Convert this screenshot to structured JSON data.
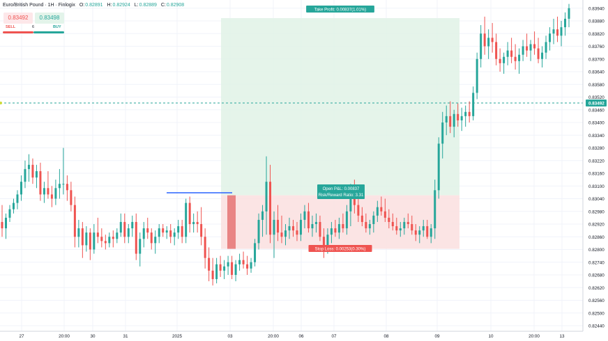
{
  "header": {
    "symbol": "Euro/British Pound · 1H · Finlogix",
    "o_label": "O:",
    "o": "0.82891",
    "h_label": "H:",
    "h": "0.82924",
    "l_label": "L:",
    "l": "0.82889",
    "c_label": "C:",
    "c": "0.82908"
  },
  "trade": {
    "sell_price": "0.83492",
    "buy_price": "0.83498",
    "sell_label": "SELL",
    "buy_label": "BUY",
    "spread": "6"
  },
  "colors": {
    "up": "#26a69a",
    "down": "#ef5350",
    "profit_zone": "#e0f2e6",
    "loss_zone": "#fbe1e1",
    "entry_line": "#2962ff"
  },
  "chart_data": {
    "type": "candlestick",
    "title": "Euro/British Pound · 1H · Finlogix",
    "xlabel": "",
    "ylabel": "",
    "ylim": [
      0.8242,
      0.8397
    ],
    "y_ticks": [
      "0.83940",
      "0.83880",
      "0.83820",
      "0.83760",
      "0.83700",
      "0.83640",
      "0.83580",
      "0.83520",
      "0.83460",
      "0.83400",
      "0.83340",
      "0.83280",
      "0.83220",
      "0.83160",
      "0.83100",
      "0.83040",
      "0.82980",
      "0.82920",
      "0.82860",
      "0.82800",
      "0.82740",
      "0.82680",
      "0.82620",
      "0.82560",
      "0.82500",
      "0.82440"
    ],
    "x_ticks": [
      "27",
      "20:00",
      "30",
      "31",
      "2025",
      "03",
      "20:00",
      "06",
      "07",
      "08",
      "09",
      "10",
      "20:00",
      "13"
    ],
    "current_price": "0.83492",
    "position": {
      "side": "long",
      "entry": 0.83056,
      "take_profit": 0.83893,
      "stop_loss": 0.82803,
      "take_profit_label": "Take Profit: 0.00837(1.01%)",
      "stop_loss_label": "Stop Loss: 0.00253(0.30%)",
      "pnl_label": "Open P&L: 0.00837",
      "rr_label": "Risk/Reward Ratio: 3.31"
    },
    "series": [
      {
        "values": [
          [
            0.8293,
            0.8301,
            0.8286,
            0.829
          ],
          [
            0.829,
            0.8297,
            0.8285,
            0.8295
          ],
          [
            0.8295,
            0.8301,
            0.8293,
            0.8299
          ],
          [
            0.8299,
            0.8304,
            0.8297,
            0.8302
          ],
          [
            0.8302,
            0.8308,
            0.8299,
            0.8306
          ],
          [
            0.8306,
            0.8315,
            0.8303,
            0.8312
          ],
          [
            0.8312,
            0.8322,
            0.8309,
            0.8318
          ],
          [
            0.8318,
            0.8325,
            0.8312,
            0.832
          ],
          [
            0.832,
            0.8323,
            0.8311,
            0.8314
          ],
          [
            0.8314,
            0.832,
            0.8309,
            0.8317
          ],
          [
            0.8317,
            0.8321,
            0.8303,
            0.8306
          ],
          [
            0.8306,
            0.8312,
            0.8302,
            0.8309
          ],
          [
            0.8309,
            0.8317,
            0.8304,
            0.8306
          ],
          [
            0.8306,
            0.831,
            0.83,
            0.8304
          ],
          [
            0.8304,
            0.8313,
            0.8301,
            0.8309
          ],
          [
            0.8309,
            0.8318,
            0.8304,
            0.8311
          ],
          [
            0.8311,
            0.8328,
            0.8306,
            0.8311
          ],
          [
            0.8311,
            0.8315,
            0.8303,
            0.8308
          ],
          [
            0.8308,
            0.8312,
            0.8298,
            0.8301
          ],
          [
            0.8301,
            0.8305,
            0.8281,
            0.8286
          ],
          [
            0.8286,
            0.8294,
            0.8281,
            0.829
          ],
          [
            0.829,
            0.8293,
            0.8276,
            0.8282
          ],
          [
            0.8282,
            0.8291,
            0.8279,
            0.8288
          ],
          [
            0.8288,
            0.829,
            0.8275,
            0.828
          ],
          [
            0.828,
            0.8292,
            0.8278,
            0.8288
          ],
          [
            0.8288,
            0.8295,
            0.8283,
            0.8286
          ],
          [
            0.8286,
            0.829,
            0.8281,
            0.8284
          ],
          [
            0.8284,
            0.8287,
            0.828,
            0.8283
          ],
          [
            0.8283,
            0.8288,
            0.8281,
            0.8286
          ],
          [
            0.8286,
            0.8289,
            0.8281,
            0.8285
          ],
          [
            0.8285,
            0.829,
            0.8283,
            0.8288
          ],
          [
            0.8288,
            0.8297,
            0.8286,
            0.8293
          ],
          [
            0.8293,
            0.8297,
            0.8283,
            0.8286
          ],
          [
            0.8286,
            0.8292,
            0.8283,
            0.829
          ],
          [
            0.829,
            0.8296,
            0.8286,
            0.8293
          ],
          [
            0.8293,
            0.8297,
            0.8275,
            0.8278
          ],
          [
            0.8278,
            0.8288,
            0.8272,
            0.8285
          ],
          [
            0.8285,
            0.8293,
            0.8281,
            0.829
          ],
          [
            0.829,
            0.8295,
            0.8285,
            0.8288
          ],
          [
            0.8288,
            0.829,
            0.828,
            0.8283
          ],
          [
            0.8283,
            0.8289,
            0.8278,
            0.8286
          ],
          [
            0.8286,
            0.8292,
            0.8283,
            0.829
          ],
          [
            0.829,
            0.8292,
            0.8286,
            0.8288
          ],
          [
            0.8288,
            0.8291,
            0.8285,
            0.8289
          ],
          [
            0.8289,
            0.8292,
            0.8283,
            0.8286
          ],
          [
            0.8286,
            0.829,
            0.8282,
            0.8288
          ],
          [
            0.8288,
            0.8294,
            0.8285,
            0.8291
          ],
          [
            0.8291,
            0.8294,
            0.8283,
            0.8286
          ],
          [
            0.8286,
            0.8304,
            0.8283,
            0.8302
          ],
          [
            0.8302,
            0.8305,
            0.8288,
            0.8292
          ],
          [
            0.8292,
            0.8297,
            0.8288,
            0.8293
          ],
          [
            0.8293,
            0.8298,
            0.8288,
            0.8292
          ],
          [
            0.8292,
            0.83,
            0.8282,
            0.8286
          ],
          [
            0.8286,
            0.829,
            0.8271,
            0.8276
          ],
          [
            0.8276,
            0.8281,
            0.8265,
            0.827
          ],
          [
            0.827,
            0.8276,
            0.8263,
            0.8266
          ],
          [
            0.8266,
            0.8276,
            0.8264,
            0.8273
          ],
          [
            0.8273,
            0.8277,
            0.8267,
            0.827
          ],
          [
            0.827,
            0.8275,
            0.8266,
            0.8272
          ],
          [
            0.8272,
            0.8277,
            0.8268,
            0.8274
          ],
          [
            0.8274,
            0.8277,
            0.8266,
            0.8268
          ],
          [
            0.8268,
            0.8275,
            0.8265,
            0.8273
          ],
          [
            0.8273,
            0.8278,
            0.827,
            0.8275
          ],
          [
            0.8275,
            0.8279,
            0.8271,
            0.8273
          ],
          [
            0.8273,
            0.8277,
            0.8268,
            0.8271
          ],
          [
            0.8271,
            0.8276,
            0.8269,
            0.8274
          ],
          [
            0.8274,
            0.8285,
            0.8272,
            0.8283
          ],
          [
            0.8283,
            0.8297,
            0.828,
            0.8294
          ],
          [
            0.8294,
            0.8301,
            0.8286,
            0.8298
          ],
          [
            0.8298,
            0.8324,
            0.8287,
            0.8312
          ],
          [
            0.8312,
            0.832,
            0.8283,
            0.8287
          ],
          [
            0.8287,
            0.8298,
            0.8276,
            0.8294
          ],
          [
            0.8294,
            0.8301,
            0.8284,
            0.8288
          ],
          [
            0.8288,
            0.8296,
            0.8283,
            0.8286
          ],
          [
            0.8286,
            0.8292,
            0.8282,
            0.8289
          ],
          [
            0.8289,
            0.8295,
            0.8285,
            0.8291
          ],
          [
            0.8291,
            0.8294,
            0.8286,
            0.8289
          ],
          [
            0.8289,
            0.8293,
            0.8284,
            0.8287
          ],
          [
            0.8287,
            0.8297,
            0.8284,
            0.8294
          ],
          [
            0.8294,
            0.8301,
            0.829,
            0.8298
          ],
          [
            0.8298,
            0.8302,
            0.8288,
            0.829
          ],
          [
            0.829,
            0.8296,
            0.8286,
            0.8292
          ],
          [
            0.8292,
            0.8297,
            0.8288,
            0.8293
          ],
          [
            0.8293,
            0.8296,
            0.8284,
            0.8286
          ],
          [
            0.8286,
            0.829,
            0.8276,
            0.8281
          ],
          [
            0.8281,
            0.829,
            0.8278,
            0.8287
          ],
          [
            0.8287,
            0.8293,
            0.8283,
            0.829
          ],
          [
            0.829,
            0.8294,
            0.8286,
            0.8288
          ],
          [
            0.8288,
            0.8295,
            0.8285,
            0.8292
          ],
          [
            0.8292,
            0.8297,
            0.8288,
            0.829
          ],
          [
            0.829,
            0.8301,
            0.8287,
            0.8298
          ],
          [
            0.8298,
            0.8311,
            0.8291,
            0.8305
          ],
          [
            0.8305,
            0.8313,
            0.8297,
            0.8301
          ],
          [
            0.8301,
            0.8306,
            0.8293,
            0.8296
          ],
          [
            0.8296,
            0.83,
            0.8291,
            0.8293
          ],
          [
            0.8293,
            0.8297,
            0.8288,
            0.829
          ],
          [
            0.829,
            0.8294,
            0.8287,
            0.8292
          ],
          [
            0.8292,
            0.8298,
            0.8288,
            0.8296
          ],
          [
            0.8296,
            0.8303,
            0.8293,
            0.83
          ],
          [
            0.83,
            0.8305,
            0.8296,
            0.8298
          ],
          [
            0.8298,
            0.8304,
            0.8293,
            0.8295
          ],
          [
            0.8295,
            0.8299,
            0.829,
            0.8293
          ],
          [
            0.8293,
            0.8297,
            0.8289,
            0.8291
          ],
          [
            0.8291,
            0.8295,
            0.8287,
            0.8289
          ],
          [
            0.8289,
            0.8293,
            0.8286,
            0.829
          ],
          [
            0.829,
            0.8295,
            0.8287,
            0.8293
          ],
          [
            0.8293,
            0.8297,
            0.829,
            0.8292
          ],
          [
            0.8292,
            0.8296,
            0.8287,
            0.8289
          ],
          [
            0.8289,
            0.8292,
            0.8284,
            0.8287
          ],
          [
            0.8287,
            0.8291,
            0.8283,
            0.8289
          ],
          [
            0.8289,
            0.8294,
            0.8286,
            0.8291
          ],
          [
            0.8291,
            0.8294,
            0.8285,
            0.8286
          ],
          [
            0.8286,
            0.8292,
            0.8283,
            0.829
          ],
          [
            0.829,
            0.8313,
            0.8285,
            0.8308
          ],
          [
            0.8308,
            0.8333,
            0.8304,
            0.833
          ],
          [
            0.833,
            0.8345,
            0.8323,
            0.834
          ],
          [
            0.834,
            0.8348,
            0.8334,
            0.8343
          ],
          [
            0.8343,
            0.835,
            0.8335,
            0.8338
          ],
          [
            0.8338,
            0.8346,
            0.8333,
            0.8344
          ],
          [
            0.8344,
            0.8349,
            0.8338,
            0.8341
          ],
          [
            0.8341,
            0.8347,
            0.8336,
            0.8343
          ],
          [
            0.8343,
            0.8348,
            0.8338,
            0.8345
          ],
          [
            0.8345,
            0.835,
            0.834,
            0.8343
          ],
          [
            0.8343,
            0.8357,
            0.8341,
            0.8354
          ],
          [
            0.8354,
            0.8373,
            0.8351,
            0.837
          ],
          [
            0.837,
            0.8386,
            0.8366,
            0.8382
          ],
          [
            0.8382,
            0.839,
            0.8372,
            0.8376
          ],
          [
            0.8376,
            0.8384,
            0.837,
            0.838
          ],
          [
            0.838,
            0.8387,
            0.8373,
            0.8378
          ],
          [
            0.8378,
            0.8382,
            0.8367,
            0.837
          ],
          [
            0.837,
            0.8375,
            0.8364,
            0.8368
          ],
          [
            0.8368,
            0.8373,
            0.8363,
            0.8371
          ],
          [
            0.8371,
            0.8378,
            0.8367,
            0.8374
          ],
          [
            0.8374,
            0.838,
            0.8368,
            0.8371
          ],
          [
            0.8371,
            0.8377,
            0.8365,
            0.8369
          ],
          [
            0.8369,
            0.8375,
            0.8363,
            0.8372
          ],
          [
            0.8372,
            0.8379,
            0.8369,
            0.8376
          ],
          [
            0.8376,
            0.8382,
            0.8371,
            0.8374
          ],
          [
            0.8374,
            0.8379,
            0.8369,
            0.8377
          ],
          [
            0.8377,
            0.8383,
            0.8372,
            0.8375
          ],
          [
            0.8375,
            0.838,
            0.8368,
            0.837
          ],
          [
            0.837,
            0.8376,
            0.8366,
            0.8373
          ],
          [
            0.8373,
            0.8381,
            0.837,
            0.8378
          ],
          [
            0.8378,
            0.8385,
            0.8374,
            0.8382
          ],
          [
            0.8382,
            0.8389,
            0.8377,
            0.8384
          ],
          [
            0.8384,
            0.839,
            0.8378,
            0.8381
          ],
          [
            0.8381,
            0.8388,
            0.8376,
            0.8385
          ],
          [
            0.8385,
            0.8392,
            0.8381,
            0.8389
          ],
          [
            0.8389,
            0.8396,
            0.8385,
            0.8394
          ]
        ]
      }
    ]
  }
}
